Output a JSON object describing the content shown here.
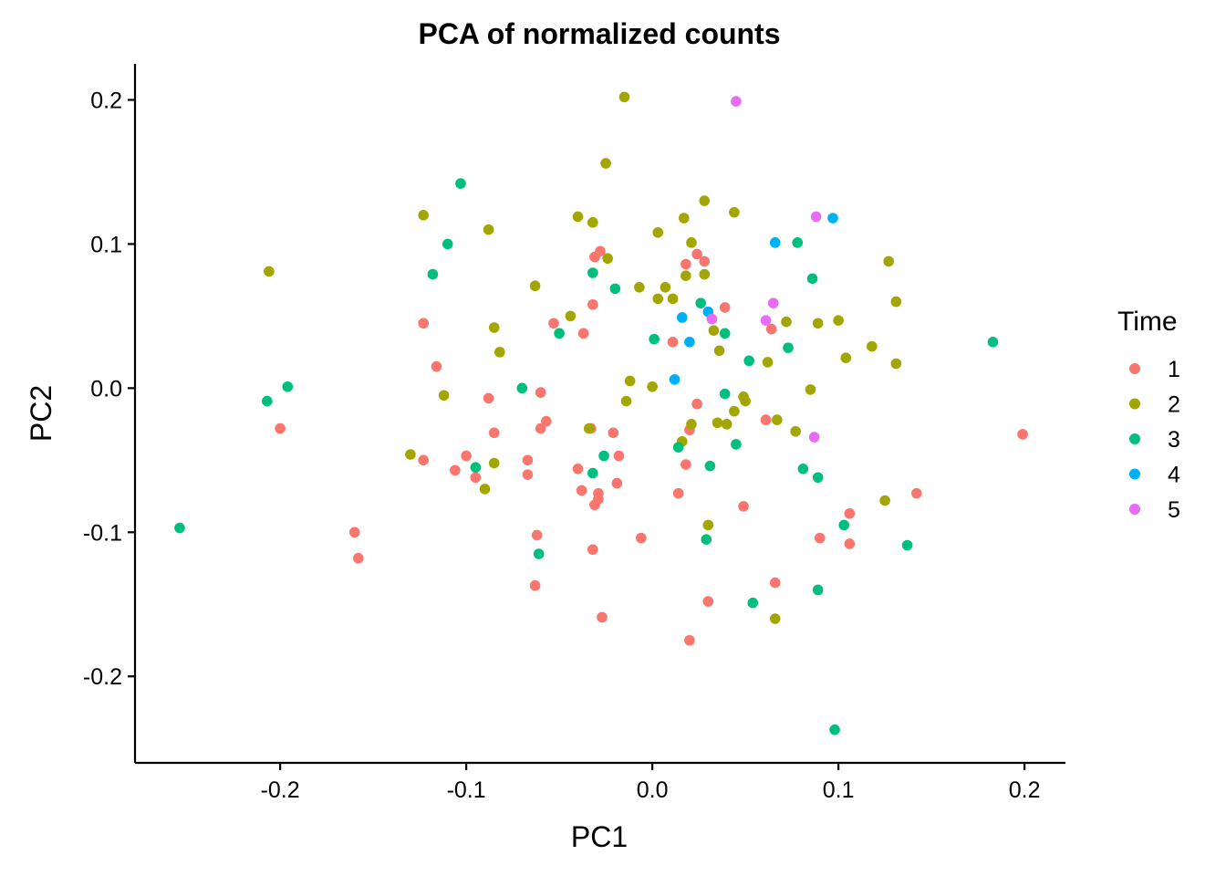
{
  "chart_data": {
    "type": "scatter",
    "title": "PCA of normalized counts",
    "xlabel": "PC1",
    "ylabel": "PC2",
    "xlim": [
      -0.278,
      0.222
    ],
    "ylim": [
      -0.26,
      0.225
    ],
    "xticks": [
      {
        "value": -0.2,
        "label": "-0.2"
      },
      {
        "value": -0.1,
        "label": "-0.1"
      },
      {
        "value": 0.0,
        "label": "0.0"
      },
      {
        "value": 0.1,
        "label": "0.1"
      },
      {
        "value": 0.2,
        "label": "0.2"
      }
    ],
    "yticks": [
      {
        "value": 0.2,
        "label": "0.2"
      },
      {
        "value": 0.1,
        "label": "0.1"
      },
      {
        "value": 0.0,
        "label": "0.0"
      },
      {
        "value": -0.1,
        "label": "-0.1"
      },
      {
        "value": -0.2,
        "label": "-0.2"
      }
    ],
    "grid": false,
    "legend": {
      "title": "Time",
      "position": "right"
    },
    "series": [
      {
        "name": "1",
        "color": "#F8766D",
        "points": [
          [
            -0.028,
            0.095
          ],
          [
            -0.031,
            0.091
          ],
          [
            -0.032,
            0.058
          ],
          [
            -0.053,
            0.045
          ],
          [
            -0.037,
            0.038
          ],
          [
            -0.123,
            0.045
          ],
          [
            -0.116,
            0.015
          ],
          [
            -0.088,
            -0.007
          ],
          [
            -0.085,
            -0.031
          ],
          [
            -0.06,
            -0.003
          ],
          [
            -0.057,
            -0.023
          ],
          [
            -0.06,
            -0.028
          ],
          [
            -0.033,
            -0.028
          ],
          [
            -0.021,
            -0.031
          ],
          [
            -0.018,
            -0.047
          ],
          [
            -0.2,
            -0.028
          ],
          [
            -0.123,
            -0.05
          ],
          [
            -0.1,
            -0.047
          ],
          [
            -0.106,
            -0.057
          ],
          [
            -0.095,
            -0.062
          ],
          [
            -0.067,
            -0.05
          ],
          [
            -0.067,
            -0.06
          ],
          [
            -0.04,
            -0.056
          ],
          [
            -0.038,
            -0.071
          ],
          [
            -0.031,
            -0.081
          ],
          [
            -0.029,
            -0.073
          ],
          [
            -0.029,
            -0.077
          ],
          [
            -0.019,
            -0.066
          ],
          [
            -0.062,
            -0.102
          ],
          [
            -0.032,
            -0.112
          ],
          [
            -0.006,
            -0.104
          ],
          [
            -0.16,
            -0.1
          ],
          [
            -0.158,
            -0.118
          ],
          [
            -0.063,
            -0.137
          ],
          [
            -0.027,
            -0.159
          ],
          [
            0.011,
            0.032
          ],
          [
            0.018,
            0.086
          ],
          [
            0.024,
            0.093
          ],
          [
            0.028,
            0.088
          ],
          [
            0.039,
            0.056
          ],
          [
            0.024,
            -0.011
          ],
          [
            0.02,
            -0.029
          ],
          [
            0.018,
            -0.053
          ],
          [
            0.014,
            -0.073
          ],
          [
            0.064,
            0.041
          ],
          [
            0.061,
            -0.022
          ],
          [
            0.049,
            -0.082
          ],
          [
            0.066,
            -0.135
          ],
          [
            0.03,
            -0.148
          ],
          [
            0.02,
            -0.175
          ],
          [
            0.09,
            -0.104
          ],
          [
            0.106,
            -0.087
          ],
          [
            0.106,
            -0.108
          ],
          [
            0.142,
            -0.073
          ],
          [
            0.199,
            -0.032
          ]
        ]
      },
      {
        "name": "2",
        "color": "#A3A500",
        "points": [
          [
            -0.015,
            0.202
          ],
          [
            -0.025,
            0.156
          ],
          [
            -0.123,
            0.12
          ],
          [
            -0.088,
            0.11
          ],
          [
            -0.04,
            0.119
          ],
          [
            -0.032,
            0.115
          ],
          [
            -0.024,
            0.09
          ],
          [
            -0.206,
            0.081
          ],
          [
            -0.063,
            0.071
          ],
          [
            -0.085,
            0.042
          ],
          [
            -0.082,
            0.025
          ],
          [
            -0.044,
            0.05
          ],
          [
            -0.112,
            -0.005
          ],
          [
            -0.034,
            -0.028
          ],
          [
            -0.13,
            -0.046
          ],
          [
            -0.085,
            -0.052
          ],
          [
            -0.09,
            -0.07
          ],
          [
            0.003,
            0.108
          ],
          [
            0.017,
            0.118
          ],
          [
            0.021,
            0.101
          ],
          [
            0.028,
            0.13
          ],
          [
            0.044,
            0.122
          ],
          [
            0.018,
            0.078
          ],
          [
            0.028,
            0.079
          ],
          [
            -0.007,
            0.07
          ],
          [
            0.003,
            0.062
          ],
          [
            0.007,
            0.07
          ],
          [
            0.011,
            0.062
          ],
          [
            -0.012,
            0.005
          ],
          [
            0.0,
            0.001
          ],
          [
            -0.014,
            -0.009
          ],
          [
            0.033,
            0.04
          ],
          [
            0.036,
            0.026
          ],
          [
            0.062,
            0.018
          ],
          [
            0.072,
            0.046
          ],
          [
            0.089,
            0.045
          ],
          [
            0.1,
            0.047
          ],
          [
            0.104,
            0.021
          ],
          [
            0.118,
            0.029
          ],
          [
            0.127,
            0.088
          ],
          [
            0.131,
            0.06
          ],
          [
            0.131,
            0.017
          ],
          [
            0.085,
            -0.001
          ],
          [
            0.049,
            -0.006
          ],
          [
            0.05,
            -0.009
          ],
          [
            0.044,
            -0.016
          ],
          [
            0.035,
            -0.024
          ],
          [
            0.04,
            -0.025
          ],
          [
            0.067,
            -0.022
          ],
          [
            0.077,
            -0.03
          ],
          [
            0.021,
            -0.025
          ],
          [
            0.016,
            -0.037
          ],
          [
            0.03,
            -0.095
          ],
          [
            0.066,
            -0.16
          ],
          [
            0.125,
            -0.078
          ]
        ]
      },
      {
        "name": "3",
        "color": "#00BF7D",
        "points": [
          [
            -0.103,
            0.142
          ],
          [
            -0.11,
            0.1
          ],
          [
            -0.118,
            0.079
          ],
          [
            -0.032,
            0.08
          ],
          [
            -0.02,
            0.069
          ],
          [
            -0.05,
            0.038
          ],
          [
            -0.07,
            0.0
          ],
          [
            -0.196,
            0.001
          ],
          [
            -0.207,
            -0.009
          ],
          [
            0.001,
            0.034
          ],
          [
            0.026,
            0.059
          ],
          [
            0.039,
            0.038
          ],
          [
            0.052,
            0.019
          ],
          [
            0.073,
            0.028
          ],
          [
            0.078,
            0.101
          ],
          [
            0.086,
            0.076
          ],
          [
            0.183,
            0.032
          ],
          [
            -0.095,
            -0.055
          ],
          [
            -0.032,
            -0.059
          ],
          [
            -0.026,
            -0.047
          ],
          [
            0.014,
            -0.041
          ],
          [
            0.031,
            -0.054
          ],
          [
            0.045,
            -0.039
          ],
          [
            0.039,
            -0.004
          ],
          [
            0.081,
            -0.056
          ],
          [
            0.089,
            -0.062
          ],
          [
            -0.061,
            -0.115
          ],
          [
            0.029,
            -0.105
          ],
          [
            0.054,
            -0.149
          ],
          [
            0.089,
            -0.14
          ],
          [
            0.103,
            -0.095
          ],
          [
            0.137,
            -0.109
          ],
          [
            -0.254,
            -0.097
          ],
          [
            0.098,
            -0.237
          ]
        ]
      },
      {
        "name": "4",
        "color": "#00B0F6",
        "points": [
          [
            0.066,
            0.101
          ],
          [
            0.097,
            0.118
          ],
          [
            0.016,
            0.049
          ],
          [
            0.03,
            0.053
          ],
          [
            0.02,
            0.032
          ],
          [
            0.012,
            0.006
          ]
        ]
      },
      {
        "name": "5",
        "color": "#E76BF3",
        "points": [
          [
            0.045,
            0.199
          ],
          [
            0.088,
            0.119
          ],
          [
            0.065,
            0.059
          ],
          [
            0.032,
            0.048
          ],
          [
            0.061,
            0.047
          ],
          [
            0.087,
            -0.034
          ]
        ]
      }
    ]
  }
}
